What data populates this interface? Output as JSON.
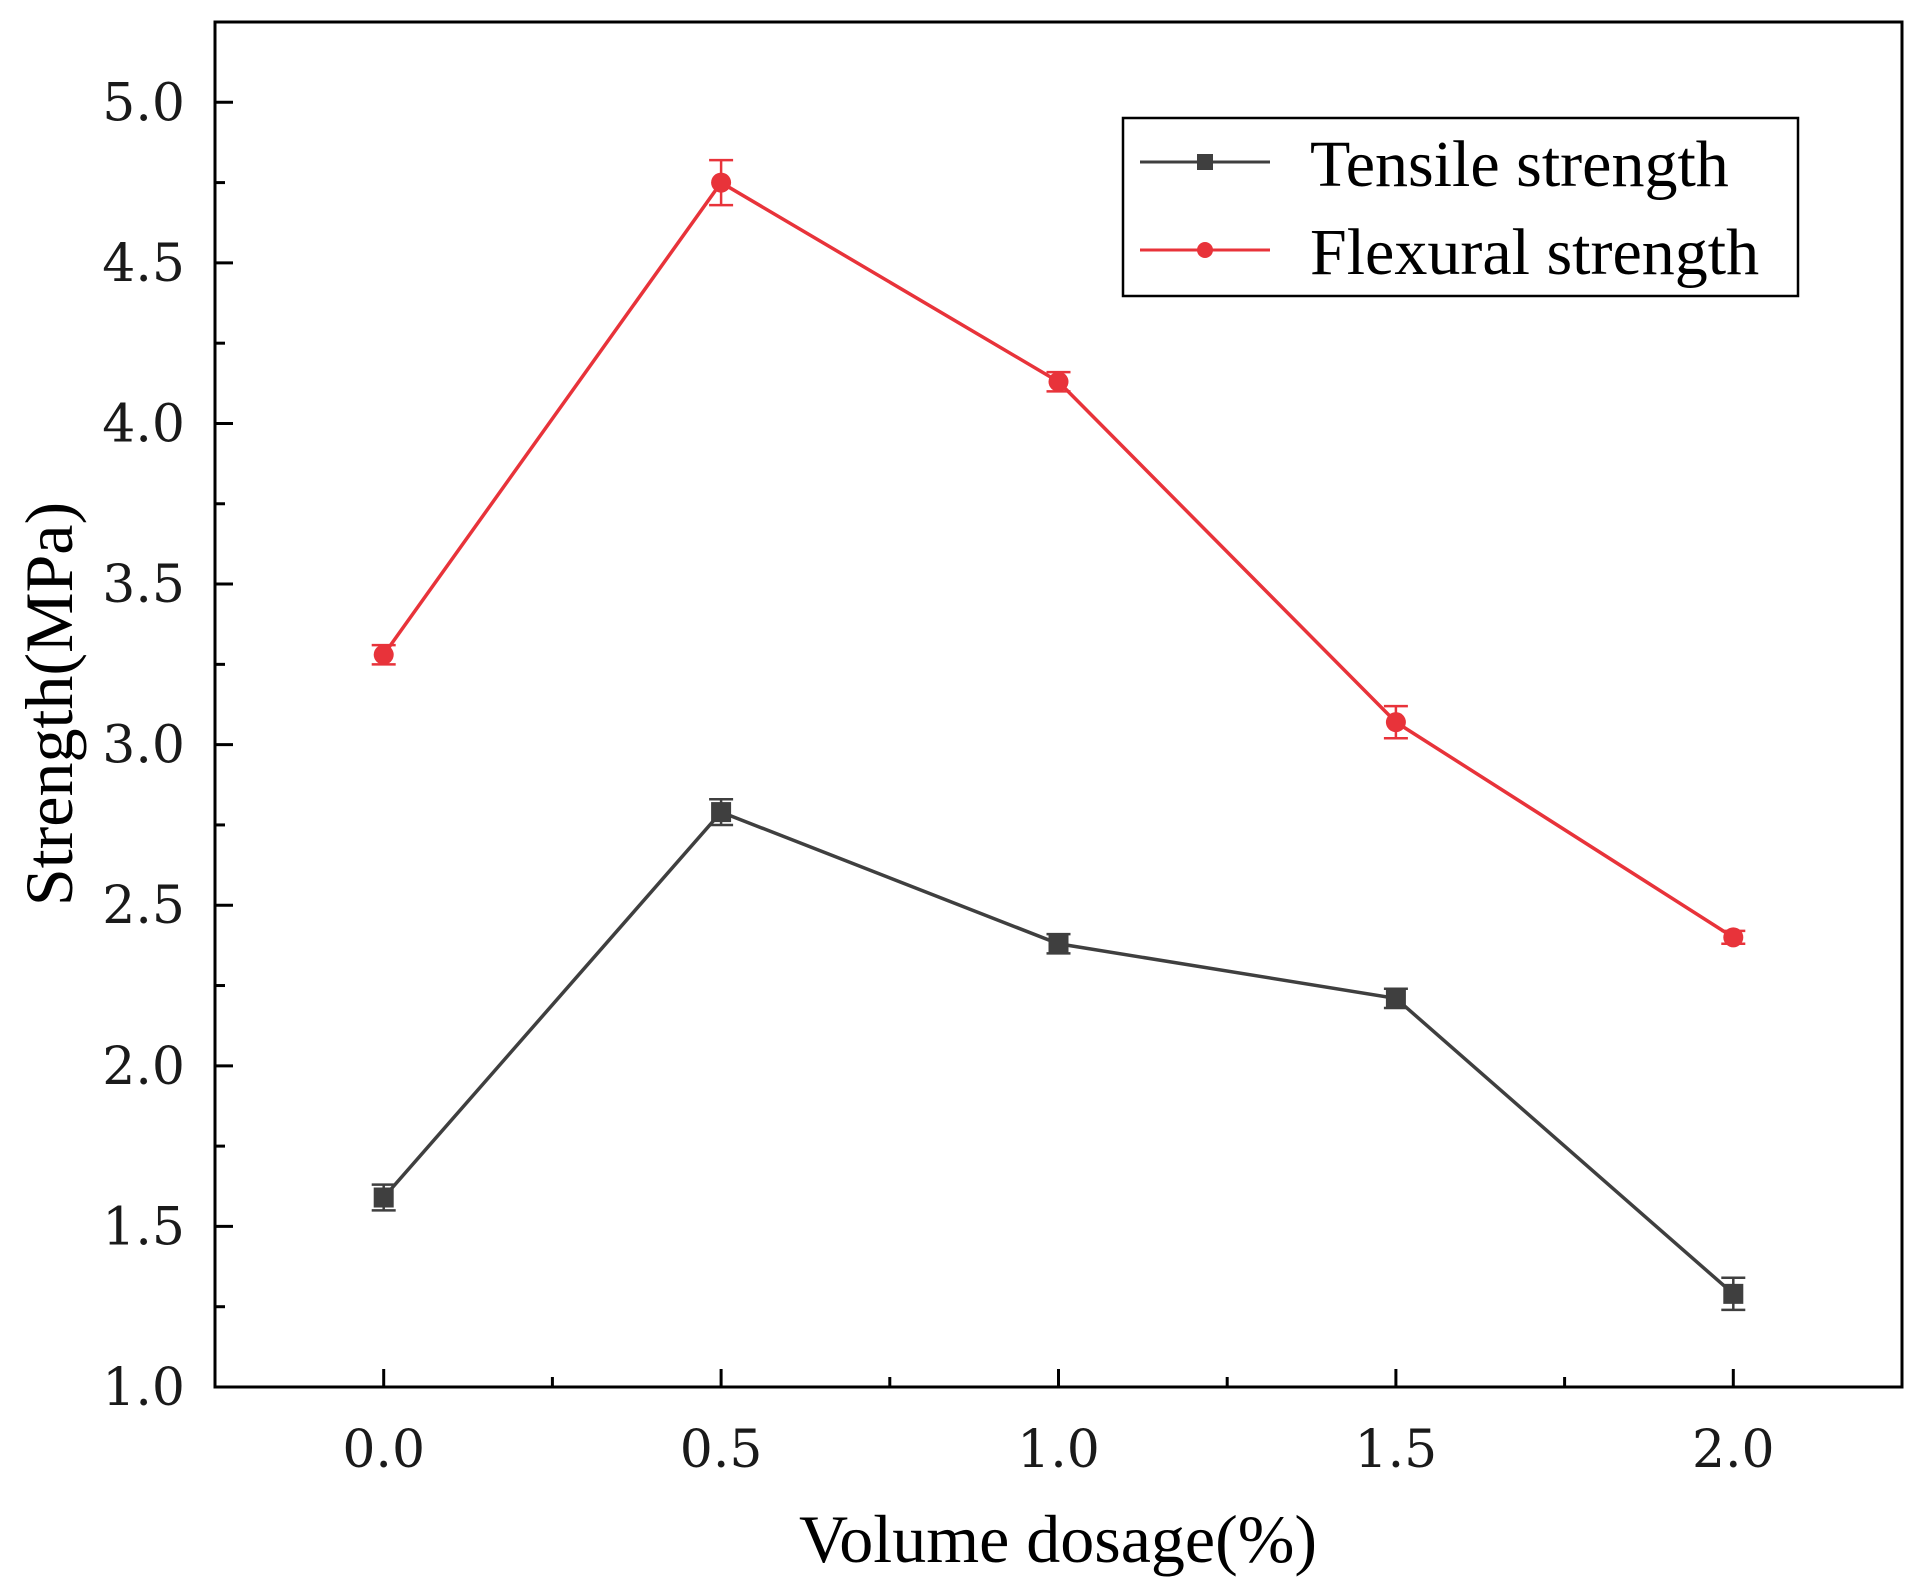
{
  "chart_data": {
    "type": "line",
    "title": "",
    "xlabel": "Volume dosage(%)",
    "ylabel": "Strength(MPa)",
    "x": [
      0.0,
      0.5,
      1.0,
      1.5,
      2.0
    ],
    "x_tick_labels": [
      "0.0",
      "0.5",
      "1.0",
      "1.5",
      "2.0"
    ],
    "xlim": [
      -0.25,
      2.25
    ],
    "ylim": [
      1.0,
      5.25
    ],
    "y_ticks": [
      1.0,
      1.5,
      2.0,
      2.5,
      3.0,
      3.5,
      4.0,
      4.5,
      5.0
    ],
    "y_tick_labels": [
      "1.0",
      "1.5",
      "2.0",
      "2.5",
      "3.0",
      "3.5",
      "4.0",
      "4.5",
      "5.0"
    ],
    "grid": false,
    "legend_position": "top-right",
    "series": [
      {
        "name": "Tensile strength",
        "color": "#3f3f3f",
        "marker": "square",
        "values": [
          1.59,
          2.79,
          2.38,
          2.21,
          1.29
        ],
        "errors": [
          0.04,
          0.04,
          0.03,
          0.03,
          0.05
        ]
      },
      {
        "name": "Flexural strength",
        "color": "#e8333a",
        "marker": "circle",
        "values": [
          3.28,
          4.75,
          4.13,
          3.07,
          2.4
        ],
        "errors": [
          0.03,
          0.07,
          0.03,
          0.05,
          0.02
        ]
      }
    ]
  }
}
